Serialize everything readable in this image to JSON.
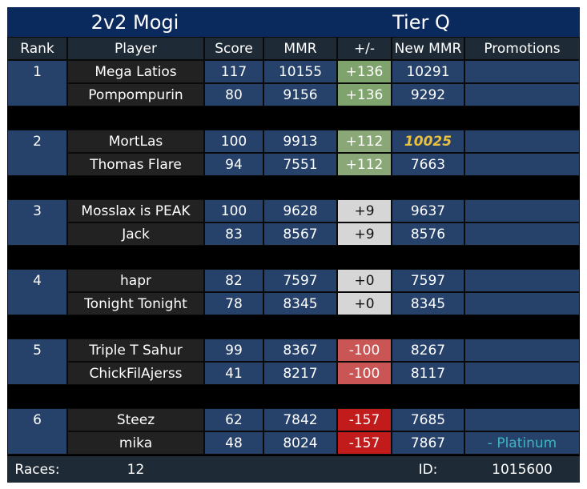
{
  "title": "2v2 Mogi",
  "tier": "Tier Q",
  "headers": [
    "Rank",
    "Player",
    "Score",
    "MMR",
    "+/-",
    "New MMR",
    "Promotions"
  ],
  "teams": [
    {
      "rank": "1",
      "players": [
        {
          "name": "Mega Latios",
          "score": "117",
          "mmr": "10155",
          "delta": "+136",
          "new_mmr": "10291",
          "promotion": ""
        },
        {
          "name": "Pompompurin",
          "score": "80",
          "mmr": "9156",
          "delta": "+136",
          "new_mmr": "9292",
          "promotion": ""
        }
      ]
    },
    {
      "rank": "2",
      "players": [
        {
          "name": "MortLas",
          "score": "100",
          "mmr": "9913",
          "delta": "+112",
          "new_mmr": "10025",
          "promotion": "",
          "highlight": true
        },
        {
          "name": "Thomas Flare",
          "score": "94",
          "mmr": "7551",
          "delta": "+112",
          "new_mmr": "7663",
          "promotion": ""
        }
      ]
    },
    {
      "rank": "3",
      "players": [
        {
          "name": "Mosslax is PEAK",
          "score": "100",
          "mmr": "9628",
          "delta": "+9",
          "new_mmr": "9637",
          "promotion": ""
        },
        {
          "name": "Jack",
          "score": "83",
          "mmr": "8567",
          "delta": "+9",
          "new_mmr": "8576",
          "promotion": ""
        }
      ]
    },
    {
      "rank": "4",
      "players": [
        {
          "name": "hapr",
          "score": "82",
          "mmr": "7597",
          "delta": "+0",
          "new_mmr": "7597",
          "promotion": ""
        },
        {
          "name": "Tonight Tonight",
          "score": "78",
          "mmr": "8345",
          "delta": "+0",
          "new_mmr": "8345",
          "promotion": ""
        }
      ]
    },
    {
      "rank": "5",
      "players": [
        {
          "name": "Triple T Sahur",
          "score": "99",
          "mmr": "8367",
          "delta": "-100",
          "new_mmr": "8267",
          "promotion": ""
        },
        {
          "name": "ChickFilAjerss",
          "score": "41",
          "mmr": "8217",
          "delta": "-100",
          "new_mmr": "8117",
          "promotion": ""
        }
      ]
    },
    {
      "rank": "6",
      "players": [
        {
          "name": "Steez",
          "score": "62",
          "mmr": "7842",
          "delta": "-157",
          "new_mmr": "7685",
          "promotion": ""
        },
        {
          "name": "mika",
          "score": "48",
          "mmr": "8024",
          "delta": "-157",
          "new_mmr": "7867",
          "promotion": "- Platinum"
        }
      ]
    }
  ],
  "delta_colors": {
    "+136": "#7fa36c",
    "+112": "#8aa877",
    "+9": "#d6d6d6",
    "+0": "#d6d6d6",
    "-100": "#c95555",
    "-157": "#c21b1b"
  },
  "delta_text_colors": {
    "+136": "#ffffff",
    "+112": "#ffffff",
    "+9": "#111111",
    "+0": "#111111",
    "-100": "#ffffff",
    "-157": "#ffffff"
  },
  "highlight_color": "#e8c040",
  "promotion_color": "#3fb5c4",
  "footer": {
    "races_label": "Races:",
    "races_value": "12",
    "id_label": "ID:",
    "id_value": "1015600"
  }
}
